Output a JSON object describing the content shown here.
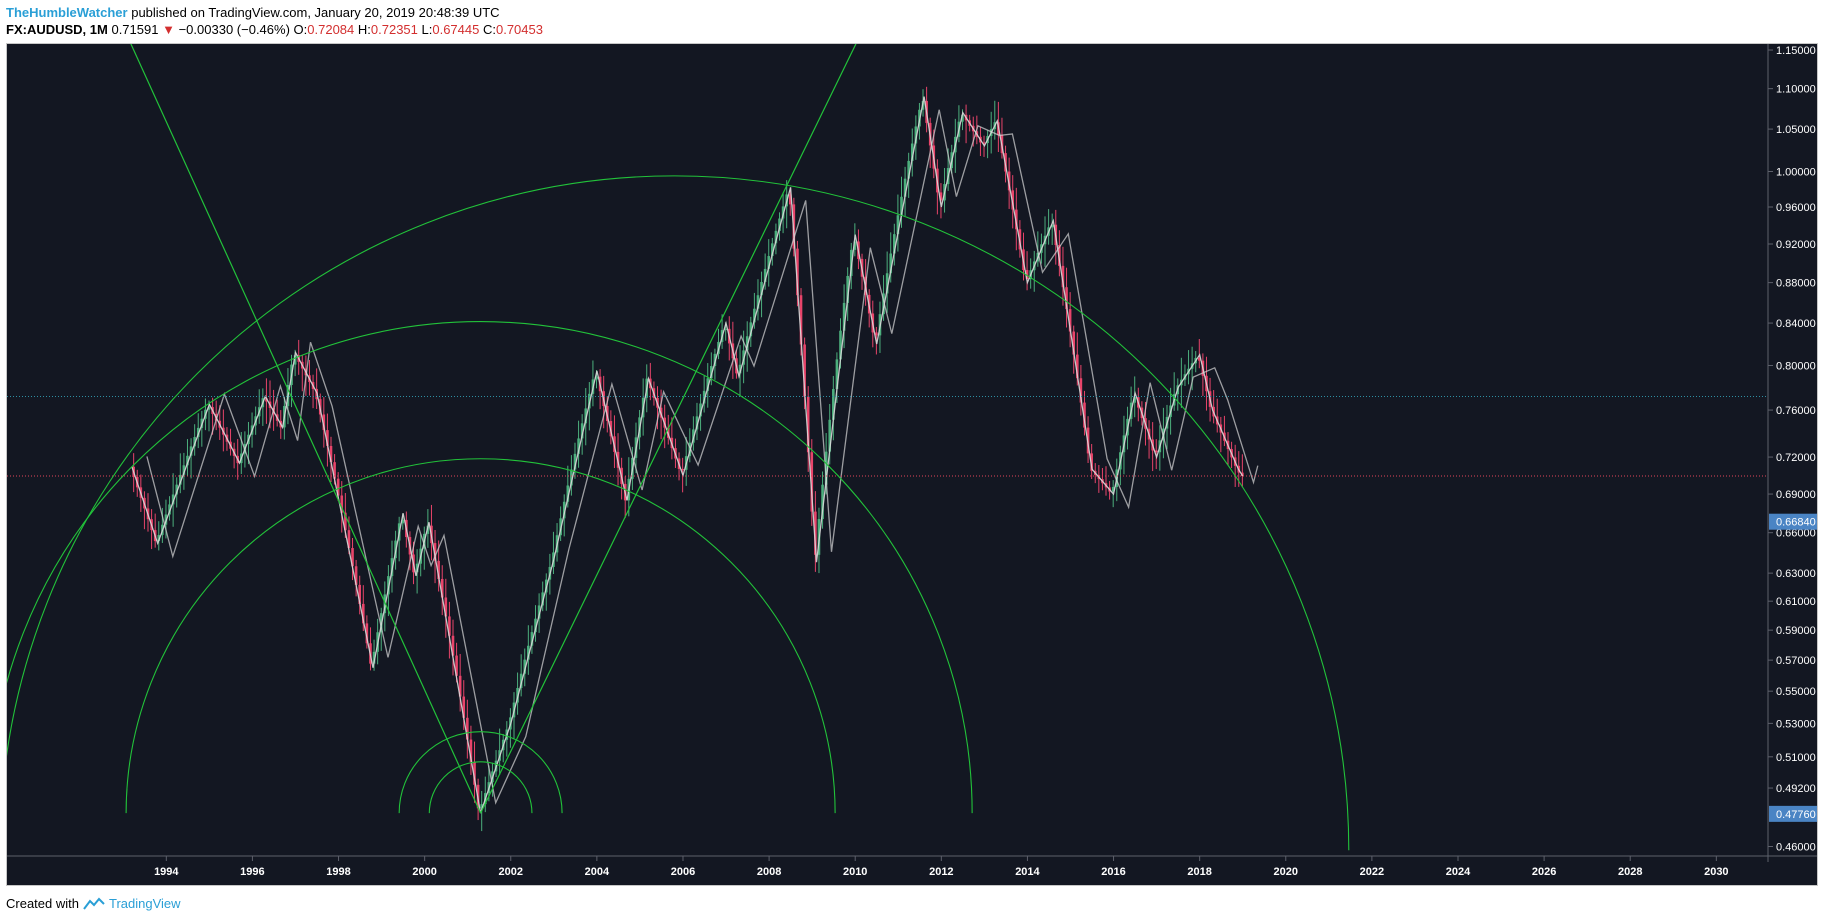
{
  "header": {
    "author": "TheHumbleWatcher",
    "published": "published on TradingView.com, January 20, 2019 20:48:39 UTC",
    "symbol": "FX:AUDUSD, 1M",
    "last": "0.71591",
    "change": "−0.00330 (−0.46%)",
    "o_label": "O:",
    "o": "0.72084",
    "h_label": "H:",
    "h": "0.72351",
    "l_label": "L:",
    "l": "0.67445",
    "c_label": "C:",
    "c": "0.70453"
  },
  "footer": {
    "created": "Created with",
    "brand": "TradingView"
  },
  "colors": {
    "background": "#131722",
    "up": "#4caf7d",
    "down": "#e8446a",
    "line": "#d9d9d9",
    "green": "#22c23a",
    "cyan_level": "#2e8fa3",
    "red_level": "#e0445a",
    "badge": "#4a84c4",
    "axis_text": "#ffffff"
  },
  "chart_data": {
    "type": "candlestick",
    "x_axis": {
      "min": 1990.3,
      "max": 2031.2,
      "ticks": [
        "1994",
        "1996",
        "1998",
        "2000",
        "2002",
        "2004",
        "2006",
        "2008",
        "2010",
        "2012",
        "2014",
        "2016",
        "2018",
        "2020",
        "2022",
        "2024",
        "2026",
        "2028",
        "2030"
      ]
    },
    "y_axis": {
      "scale": "log",
      "min": 0.455,
      "max": 1.158,
      "ticks": [
        "1.15000",
        "1.10000",
        "1.05000",
        "1.00000",
        "0.96000",
        "0.92000",
        "0.88000",
        "0.84000",
        "0.80000",
        "0.76000",
        "0.72000",
        "0.69000",
        "0.66000",
        "0.63000",
        "0.61000",
        "0.59000",
        "0.57000",
        "0.55000",
        "0.53000",
        "0.51000",
        "0.49200",
        "0.46000"
      ]
    },
    "price_badges": [
      {
        "value": "0.66840"
      },
      {
        "value": "0.47760"
      }
    ],
    "horizontal_levels": [
      {
        "value": 0.772,
        "style": "dotted",
        "color": "cyan"
      },
      {
        "value": 0.7045,
        "style": "dotted",
        "color": "red"
      }
    ],
    "price_path": [
      [
        1993.2,
        0.712
      ],
      [
        1993.8,
        0.652
      ],
      [
        1995.0,
        0.765
      ],
      [
        1995.7,
        0.715
      ],
      [
        1996.3,
        0.772
      ],
      [
        1996.7,
        0.745
      ],
      [
        1997.0,
        0.812
      ],
      [
        1997.5,
        0.775
      ],
      [
        1998.8,
        0.565
      ],
      [
        1999.5,
        0.675
      ],
      [
        1999.8,
        0.628
      ],
      [
        2000.1,
        0.668
      ],
      [
        2001.3,
        0.478
      ],
      [
        2002.0,
        0.53
      ],
      [
        2003.0,
        0.64
      ],
      [
        2004.0,
        0.795
      ],
      [
        2004.7,
        0.685
      ],
      [
        2005.2,
        0.788
      ],
      [
        2006.0,
        0.705
      ],
      [
        2007.0,
        0.84
      ],
      [
        2007.3,
        0.79
      ],
      [
        2008.5,
        0.982
      ],
      [
        2009.1,
        0.638
      ],
      [
        2010.0,
        0.93
      ],
      [
        2010.5,
        0.82
      ],
      [
        2011.6,
        1.09
      ],
      [
        2012.0,
        0.96
      ],
      [
        2012.5,
        1.07
      ],
      [
        2013.0,
        1.03
      ],
      [
        2013.3,
        1.06
      ],
      [
        2014.0,
        0.88
      ],
      [
        2014.6,
        0.945
      ],
      [
        2015.5,
        0.71
      ],
      [
        2016.0,
        0.69
      ],
      [
        2016.5,
        0.775
      ],
      [
        2017.0,
        0.72
      ],
      [
        2017.5,
        0.78
      ],
      [
        2018.0,
        0.81
      ],
      [
        2018.3,
        0.76
      ],
      [
        2018.9,
        0.71
      ],
      [
        2019.0,
        0.7045
      ]
    ],
    "gann_lines": [
      [
        [
          1993.1,
          1.168
        ],
        [
          2001.3,
          0.478
        ]
      ],
      [
        [
          2001.3,
          0.478
        ],
        [
          2010.1,
          1.168
        ]
      ]
    ],
    "gann_arcs": [
      {
        "center": [
          2001.3,
          0.478
        ],
        "through": [
          1993.2,
          0.712
        ],
        "note": "large arc"
      },
      {
        "center": [
          2001.3,
          0.478
        ],
        "through": [
          2003.8,
          0.705
        ],
        "note": "medium arc"
      },
      {
        "center": [
          2001.3,
          0.478
        ],
        "through": [
          2002.4,
          0.489
        ],
        "note": "small arc"
      },
      {
        "center": [
          2001.3,
          0.478
        ],
        "through": [
          2003.1,
          0.492
        ],
        "note": "small arc 2"
      },
      {
        "center": [
          2005.8,
          0.458
        ],
        "through": [
          2005.8,
          0.995
        ],
        "note": "outer arc"
      }
    ]
  }
}
